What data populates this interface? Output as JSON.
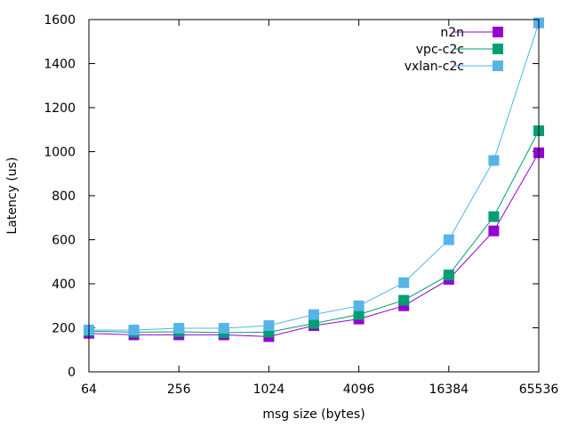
{
  "chart_data": {
    "type": "line",
    "xlabel": "msg size (bytes)",
    "ylabel": "Latency (us)",
    "xscale": "log2",
    "xlim": [
      64,
      65536
    ],
    "ylim": [
      0,
      1600
    ],
    "x_ticks": [
      64,
      256,
      1024,
      4096,
      16384,
      65536
    ],
    "y_ticks": [
      0,
      200,
      400,
      600,
      800,
      1000,
      1200,
      1400,
      1600
    ],
    "grid": false,
    "legend_position": "top-right",
    "x": [
      64,
      128,
      256,
      512,
      1024,
      2048,
      4096,
      8192,
      16384,
      32768,
      65536
    ],
    "series": [
      {
        "name": "n2n",
        "color": "#9400d3",
        "marker": "filled-square",
        "values": [
          175,
          168,
          168,
          168,
          160,
          210,
          240,
          300,
          420,
          640,
          995
        ]
      },
      {
        "name": "vpc-c2c",
        "color": "#009e73",
        "marker": "filled-square",
        "values": [
          185,
          180,
          182,
          178,
          180,
          220,
          260,
          325,
          440,
          705,
          1095
        ]
      },
      {
        "name": "vxlan-c2c",
        "color": "#56b4e9",
        "marker": "filled-square",
        "values": [
          190,
          190,
          198,
          198,
          210,
          260,
          300,
          405,
          600,
          960,
          1585
        ]
      }
    ]
  }
}
